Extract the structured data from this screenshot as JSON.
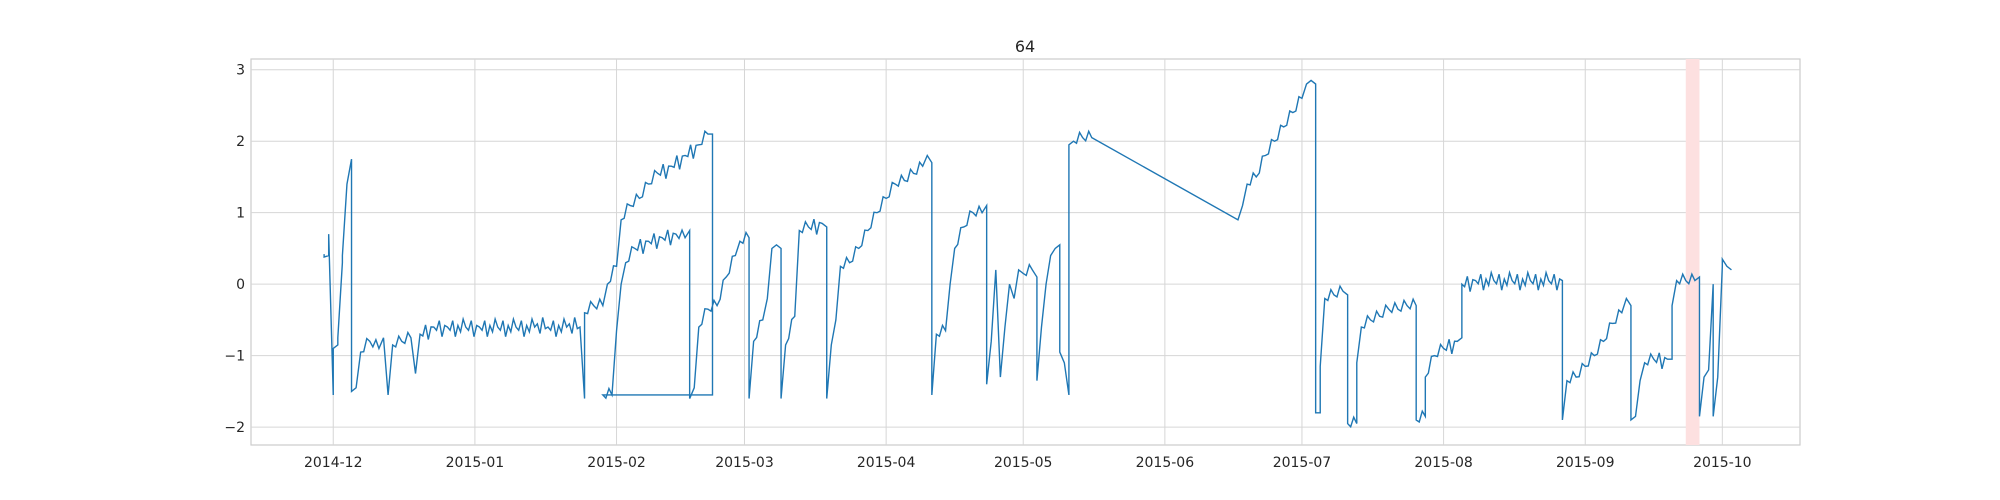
{
  "chart_data": {
    "type": "line",
    "title": "64",
    "xlabel": "",
    "ylabel": "",
    "xlim": [
      "2014-11-13",
      "2015-10-18"
    ],
    "ylim": [
      -2.25,
      3.15
    ],
    "grid": true,
    "x_ticks": [
      "2014-12",
      "2015-01",
      "2015-02",
      "2015-03",
      "2015-04",
      "2015-05",
      "2015-06",
      "2015-07",
      "2015-08",
      "2015-09",
      "2015-10"
    ],
    "y_ticks": [
      3,
      2,
      1,
      0,
      -1,
      -2
    ],
    "y_tick_labels": [
      "3",
      "2",
      "1",
      "0",
      "−1",
      "−2"
    ],
    "line_color": "#1f77b4",
    "highlight": {
      "x_start": "2015-09-23",
      "x_end": "2015-09-26",
      "color": "#fde0e0"
    },
    "series": [
      {
        "points": [
          [
            "2014-11-29",
            0.42
          ],
          [
            "2014-11-29",
            0.38
          ],
          [
            "2014-11-30",
            0.4
          ],
          [
            "2014-11-30",
            0.7
          ],
          [
            "2014-12-01",
            -1.55
          ],
          [
            "2014-12-01",
            -0.9
          ],
          [
            "2014-12-02",
            -0.85
          ],
          [
            "2014-12-02",
            -0.75
          ],
          [
            "2014-12-03",
            0.3
          ],
          [
            "2014-12-03",
            0.4
          ],
          [
            "2014-12-04",
            1.4
          ],
          [
            "2014-12-05",
            1.75
          ],
          [
            "2014-12-05",
            -1.5
          ],
          [
            "2014-12-06",
            -1.45
          ],
          [
            "2014-12-07",
            -0.95
          ],
          [
            "2014-12-09",
            -0.8
          ],
          [
            "2014-12-11",
            -0.9
          ],
          [
            "2014-12-12",
            -0.75
          ],
          [
            "2014-12-13",
            -1.55
          ],
          [
            "2014-12-14",
            -0.85
          ],
          [
            "2014-12-16",
            -0.8
          ],
          [
            "2014-12-18",
            -0.75
          ],
          [
            "2014-12-19",
            -1.25
          ],
          [
            "2014-12-20",
            -0.7
          ],
          [
            "2014-12-23",
            -0.6
          ],
          [
            "2014-12-26",
            -0.6
          ],
          [
            "2014-12-30",
            -0.6
          ],
          [
            "2015-01-02",
            -0.6
          ],
          [
            "2015-01-06",
            -0.6
          ],
          [
            "2015-01-10",
            -0.6
          ],
          [
            "2015-01-17",
            -0.6
          ],
          [
            "2015-01-24",
            -0.6
          ],
          [
            "2015-01-25",
            -1.6
          ],
          [
            "2015-01-25",
            -0.4
          ],
          [
            "2015-01-27",
            -0.3
          ],
          [
            "2015-01-29",
            -0.3
          ],
          [
            "2015-01-30",
            0.0
          ],
          [
            "2015-02-01",
            0.25
          ],
          [
            "2015-02-02",
            0.9
          ],
          [
            "2015-02-04",
            1.1
          ],
          [
            "2015-02-06",
            1.2
          ],
          [
            "2015-02-08",
            1.4
          ],
          [
            "2015-02-10",
            1.55
          ],
          [
            "2015-02-13",
            1.65
          ],
          [
            "2015-02-16",
            1.8
          ],
          [
            "2015-02-19",
            1.95
          ],
          [
            "2015-02-21",
            2.1
          ],
          [
            "2015-02-22",
            2.1
          ],
          [
            "2015-02-22",
            -1.55
          ],
          [
            "2015-01-29",
            -1.55
          ],
          [
            "2015-01-31",
            -1.55
          ],
          [
            "2015-02-01",
            -0.65
          ],
          [
            "2015-02-02",
            0.0
          ],
          [
            "2015-02-03",
            0.3
          ],
          [
            "2015-02-05",
            0.5
          ],
          [
            "2015-02-08",
            0.6
          ],
          [
            "2015-02-11",
            0.65
          ],
          [
            "2015-02-14",
            0.7
          ],
          [
            "2015-02-16",
            0.65
          ],
          [
            "2015-02-17",
            0.75
          ],
          [
            "2015-02-17",
            -1.6
          ],
          [
            "2015-02-18",
            -1.45
          ],
          [
            "2015-02-19",
            -0.6
          ],
          [
            "2015-02-21",
            -0.35
          ],
          [
            "2015-02-23",
            -0.3
          ],
          [
            "2015-02-25",
            0.1
          ],
          [
            "2015-02-27",
            0.4
          ],
          [
            "2015-02-28",
            0.6
          ],
          [
            "2015-03-02",
            0.65
          ],
          [
            "2015-03-02",
            -1.6
          ],
          [
            "2015-03-03",
            -0.8
          ],
          [
            "2015-03-05",
            -0.5
          ],
          [
            "2015-03-06",
            -0.2
          ],
          [
            "2015-03-07",
            0.5
          ],
          [
            "2015-03-08",
            0.55
          ],
          [
            "2015-03-09",
            0.5
          ],
          [
            "2015-03-09",
            -1.6
          ],
          [
            "2015-03-10",
            -0.85
          ],
          [
            "2015-03-12",
            -0.45
          ],
          [
            "2015-03-13",
            0.75
          ],
          [
            "2015-03-15",
            0.8
          ],
          [
            "2015-03-18",
            0.85
          ],
          [
            "2015-03-19",
            0.8
          ],
          [
            "2015-03-19",
            -1.6
          ],
          [
            "2015-03-20",
            -0.85
          ],
          [
            "2015-03-21",
            -0.5
          ],
          [
            "2015-03-22",
            0.25
          ],
          [
            "2015-03-24",
            0.3
          ],
          [
            "2015-03-26",
            0.5
          ],
          [
            "2015-03-28",
            0.75
          ],
          [
            "2015-03-30",
            1.0
          ],
          [
            "2015-04-01",
            1.2
          ],
          [
            "2015-04-03",
            1.4
          ],
          [
            "2015-04-05",
            1.45
          ],
          [
            "2015-04-07",
            1.55
          ],
          [
            "2015-04-09",
            1.65
          ],
          [
            "2015-04-10",
            1.8
          ],
          [
            "2015-04-11",
            1.7
          ],
          [
            "2015-04-11",
            -1.55
          ],
          [
            "2015-04-12",
            -0.7
          ],
          [
            "2015-04-14",
            -0.65
          ],
          [
            "2015-04-15",
            0.0
          ],
          [
            "2015-04-16",
            0.5
          ],
          [
            "2015-04-18",
            0.8
          ],
          [
            "2015-04-20",
            1.0
          ],
          [
            "2015-04-22",
            1.0
          ],
          [
            "2015-04-23",
            1.1
          ],
          [
            "2015-04-23",
            -1.4
          ],
          [
            "2015-04-24",
            -0.8
          ],
          [
            "2015-04-25",
            0.2
          ],
          [
            "2015-04-26",
            -1.3
          ],
          [
            "2015-04-27",
            -0.6
          ],
          [
            "2015-04-28",
            0.0
          ],
          [
            "2015-04-29",
            -0.2
          ],
          [
            "2015-04-30",
            0.2
          ],
          [
            "2015-05-01",
            0.15
          ],
          [
            "2015-05-03",
            0.2
          ],
          [
            "2015-05-04",
            0.1
          ],
          [
            "2015-05-04",
            -1.35
          ],
          [
            "2015-05-05",
            -0.6
          ],
          [
            "2015-05-06",
            0.0
          ],
          [
            "2015-05-07",
            0.4
          ],
          [
            "2015-05-08",
            0.5
          ],
          [
            "2015-05-09",
            0.55
          ],
          [
            "2015-05-09",
            -0.95
          ],
          [
            "2015-05-10",
            -1.1
          ],
          [
            "2015-05-11",
            -1.55
          ],
          [
            "2015-05-11",
            1.95
          ],
          [
            "2015-05-12",
            2.0
          ],
          [
            "2015-05-14",
            2.05
          ],
          [
            "2015-05-16",
            2.05
          ],
          [
            "2015-06-17",
            0.9
          ],
          [
            "2015-06-18",
            1.1
          ],
          [
            "2015-06-19",
            1.4
          ],
          [
            "2015-06-21",
            1.5
          ],
          [
            "2015-06-23",
            1.8
          ],
          [
            "2015-06-25",
            2.0
          ],
          [
            "2015-06-27",
            2.2
          ],
          [
            "2015-06-29",
            2.4
          ],
          [
            "2015-07-01",
            2.6
          ],
          [
            "2015-07-02",
            2.8
          ],
          [
            "2015-07-03",
            2.85
          ],
          [
            "2015-07-04",
            2.8
          ],
          [
            "2015-07-04",
            -1.8
          ],
          [
            "2015-07-05",
            -1.8
          ],
          [
            "2015-07-05",
            -1.15
          ],
          [
            "2015-07-06",
            -0.2
          ],
          [
            "2015-07-08",
            -0.15
          ],
          [
            "2015-07-10",
            -0.1
          ],
          [
            "2015-07-11",
            -0.15
          ],
          [
            "2015-07-11",
            -1.95
          ],
          [
            "2015-07-13",
            -1.95
          ],
          [
            "2015-07-13",
            -1.1
          ],
          [
            "2015-07-14",
            -0.6
          ],
          [
            "2015-07-16",
            -0.5
          ],
          [
            "2015-07-18",
            -0.45
          ],
          [
            "2015-07-20",
            -0.35
          ],
          [
            "2015-07-22",
            -0.35
          ],
          [
            "2015-07-24",
            -0.3
          ],
          [
            "2015-07-26",
            -0.3
          ],
          [
            "2015-07-26",
            -1.9
          ],
          [
            "2015-07-28",
            -1.85
          ],
          [
            "2015-07-28",
            -1.3
          ],
          [
            "2015-07-30",
            -1.0
          ],
          [
            "2015-08-01",
            -0.9
          ],
          [
            "2015-08-04",
            -0.8
          ],
          [
            "2015-08-05",
            -0.75
          ],
          [
            "2015-08-05",
            0.0
          ],
          [
            "2015-08-08",
            0.05
          ],
          [
            "2015-08-12",
            0.05
          ],
          [
            "2015-08-16",
            0.05
          ],
          [
            "2015-08-20",
            0.05
          ],
          [
            "2015-08-24",
            0.05
          ],
          [
            "2015-08-27",
            0.05
          ],
          [
            "2015-08-27",
            -1.9
          ],
          [
            "2015-08-28",
            -1.35
          ],
          [
            "2015-08-30",
            -1.3
          ],
          [
            "2015-09-01",
            -1.15
          ],
          [
            "2015-09-03",
            -1.0
          ],
          [
            "2015-09-05",
            -0.8
          ],
          [
            "2015-09-07",
            -0.55
          ],
          [
            "2015-09-09",
            -0.4
          ],
          [
            "2015-09-10",
            -0.2
          ],
          [
            "2015-09-11",
            -0.3
          ],
          [
            "2015-09-11",
            -1.9
          ],
          [
            "2015-09-12",
            -1.85
          ],
          [
            "2015-09-13",
            -1.35
          ],
          [
            "2015-09-14",
            -1.1
          ],
          [
            "2015-09-16",
            -1.05
          ],
          [
            "2015-09-19",
            -1.05
          ],
          [
            "2015-09-20",
            -1.05
          ],
          [
            "2015-09-20",
            -0.3
          ],
          [
            "2015-09-21",
            0.05
          ],
          [
            "2015-09-23",
            0.05
          ],
          [
            "2015-09-25",
            0.05
          ],
          [
            "2015-09-26",
            0.1
          ],
          [
            "2015-09-26",
            -1.85
          ],
          [
            "2015-09-27",
            -1.3
          ],
          [
            "2015-09-28",
            -1.2
          ],
          [
            "2015-09-29",
            0.0
          ],
          [
            "2015-09-29",
            -1.85
          ],
          [
            "2015-09-30",
            -1.3
          ],
          [
            "2015-10-01",
            0.25
          ],
          [
            "2015-10-01",
            0.35
          ],
          [
            "2015-10-02",
            0.25
          ],
          [
            "2015-10-03",
            0.2
          ]
        ]
      }
    ]
  }
}
